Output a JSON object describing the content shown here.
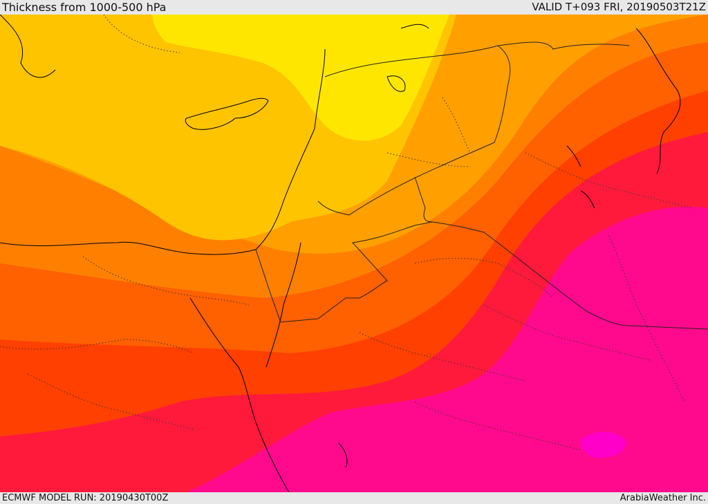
{
  "header": {
    "title": "Thickness from 1000-500 hPa",
    "valid": "VALID T+093 FRI, 20190503T21Z"
  },
  "footer": {
    "model_run": "ECMWF MODEL RUN: 20190430T00Z",
    "credit": "ArabiaWeather Inc."
  },
  "colors": {
    "band_1": "#ffe600",
    "band_2": "#ffc400",
    "band_3": "#ffa000",
    "band_4": "#ff8000",
    "band_5": "#ff6000",
    "band_6": "#ff4000",
    "band_7": "#ff1a3c",
    "band_8": "#ff0a8c",
    "band_9": "#ff00c8",
    "coastline": "#000000",
    "borders": "#333333"
  }
}
